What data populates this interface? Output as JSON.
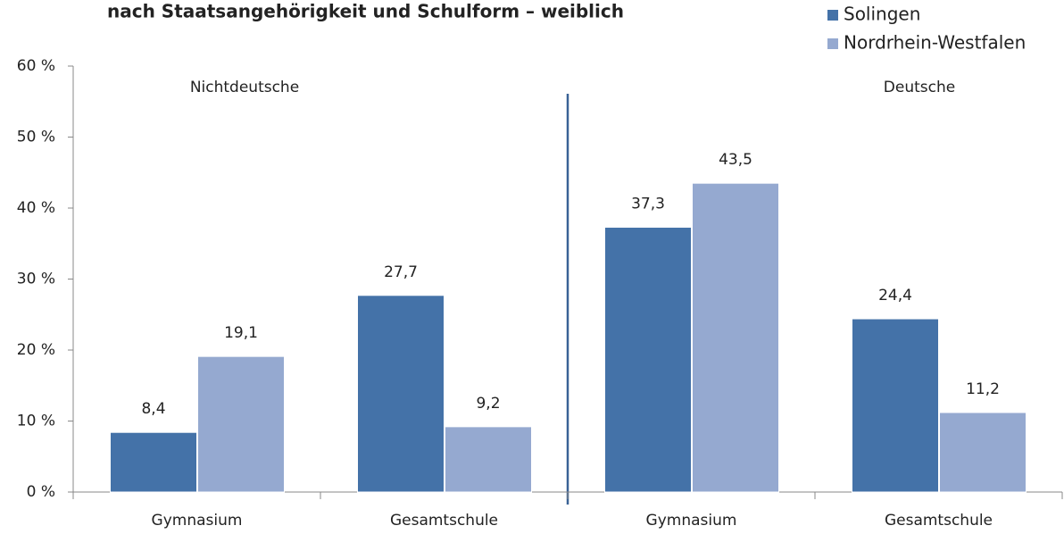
{
  "chart_data": {
    "type": "bar",
    "title": "nach Staatsangehörigkeit und Schulform – weiblich",
    "categories": [
      "Gymnasium",
      "Gesamtschule",
      "Gymnasium",
      "Gesamtschule"
    ],
    "series": [
      {
        "name": "Solingen",
        "color": "#4472a8",
        "values": [
          8.4,
          27.7,
          37.3,
          24.4
        ],
        "value_labels": [
          "8,4",
          "27,7",
          "37,3",
          "24,4"
        ]
      },
      {
        "name": "Nordrhein-Westfalen",
        "color": "#95a9d0",
        "values": [
          19.1,
          9.2,
          43.5,
          11.2
        ],
        "value_labels": [
          "19,1",
          "9,2",
          "43,5",
          "11,2"
        ]
      }
    ],
    "annotations": [
      "Nichtdeutsche",
      "Deutsche"
    ],
    "ylim": [
      0,
      60
    ],
    "yticks": [
      {
        "value": 0,
        "label": "0 %"
      },
      {
        "value": 10,
        "label": "10 %"
      },
      {
        "value": 20,
        "label": "20 %"
      },
      {
        "value": 30,
        "label": "30 %"
      },
      {
        "value": 40,
        "label": "40 %"
      },
      {
        "value": 50,
        "label": "50 %"
      },
      {
        "value": 60,
        "label": "60 %"
      }
    ],
    "grid": false,
    "legend": "top-right"
  }
}
